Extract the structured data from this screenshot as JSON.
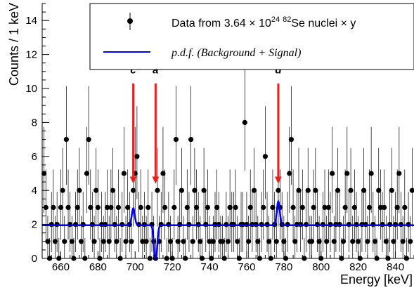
{
  "chart_data": {
    "type": "scatter",
    "xlabel": "Energy [keV]",
    "ylabel": "Counts / 1 keV",
    "xlim": [
      650,
      850
    ],
    "ylim": [
      0,
      15
    ],
    "x_ticks": [
      660,
      680,
      700,
      720,
      740,
      760,
      780,
      800,
      820,
      840
    ],
    "y_ticks": [
      0,
      2,
      4,
      6,
      8,
      10,
      12,
      14
    ],
    "grid": false,
    "legend_position": "top-right",
    "legend": {
      "data_text": "Data from 3.64 × 10",
      "data_exp": "24",
      "data_iso": "82",
      "data_tail": "Se nuclei × y",
      "pdf_text": "p.d.f. (Background + Signal)"
    },
    "series": [
      {
        "name": "Data from 3.64 × 10^24 82Se nuclei × y",
        "style": "points-with-errorbars",
        "color": "#000000",
        "x": [
          651,
          652,
          653,
          654,
          655,
          656,
          657,
          658,
          659,
          660,
          661,
          662,
          663,
          664,
          665,
          666,
          667,
          668,
          669,
          670,
          671,
          672,
          673,
          674,
          675,
          676,
          677,
          678,
          679,
          680,
          681,
          682,
          683,
          684,
          685,
          686,
          687,
          688,
          689,
          690,
          691,
          692,
          693,
          694,
          695,
          696,
          697,
          698,
          699,
          700,
          701,
          702,
          703,
          704,
          705,
          706,
          707,
          708,
          709,
          710,
          711,
          712,
          713,
          714,
          715,
          716,
          717,
          718,
          719,
          720,
          721,
          722,
          723,
          724,
          725,
          726,
          727,
          728,
          729,
          730,
          731,
          732,
          733,
          734,
          735,
          736,
          737,
          738,
          739,
          740,
          741,
          742,
          743,
          744,
          745,
          746,
          747,
          748,
          749,
          750,
          751,
          752,
          753,
          754,
          755,
          756,
          757,
          758,
          759,
          760,
          761,
          762,
          763,
          764,
          765,
          766,
          767,
          768,
          769,
          770,
          771,
          772,
          773,
          774,
          775,
          776,
          777,
          778,
          779,
          780,
          781,
          782,
          783,
          784,
          785,
          786,
          787,
          788,
          789,
          790,
          791,
          792,
          793,
          794,
          795,
          796,
          797,
          798,
          799,
          800,
          801,
          802,
          803,
          804,
          805,
          806,
          807,
          808,
          809,
          810,
          811,
          812,
          813,
          814,
          815,
          816,
          817,
          818,
          819,
          820,
          821,
          822,
          823,
          824,
          825,
          826,
          827,
          828,
          829,
          830,
          831,
          832,
          833,
          834,
          835,
          836,
          837,
          838,
          839,
          840,
          841,
          842,
          843,
          844,
          845,
          846,
          847,
          848,
          849
        ],
        "y": [
          5,
          3,
          1,
          0,
          2,
          3,
          1,
          2,
          0,
          3,
          4,
          1,
          7,
          3,
          2,
          1,
          0,
          2,
          3,
          4,
          1,
          2,
          0,
          5,
          7,
          3,
          2,
          1,
          4,
          3,
          0,
          2,
          1,
          2,
          3,
          1,
          3,
          4,
          2,
          1,
          3,
          0,
          2,
          5,
          1,
          3,
          2,
          1,
          4,
          5,
          6,
          2,
          3,
          1,
          2,
          1,
          3,
          0,
          2,
          1,
          0,
          4,
          1,
          2,
          5,
          3,
          0,
          2,
          1,
          0,
          3,
          7,
          1,
          2,
          4,
          1,
          0,
          3,
          2,
          7,
          1,
          4,
          3,
          2,
          1,
          0,
          4,
          2,
          3,
          1,
          0,
          1,
          2,
          3,
          2,
          1,
          1,
          0,
          2,
          1,
          3,
          2,
          2,
          3,
          1,
          0,
          2,
          2,
          8,
          2,
          1,
          3,
          2,
          4,
          2,
          1,
          0,
          2,
          3,
          6,
          2,
          1,
          0,
          3,
          2,
          1,
          4,
          3,
          2,
          1,
          0,
          2,
          5,
          7,
          3,
          1,
          2,
          4,
          2,
          3,
          0,
          2,
          4,
          1,
          1,
          3,
          4,
          2,
          1,
          0,
          2,
          3,
          1,
          3,
          2,
          5,
          1,
          2,
          4,
          2,
          0,
          1,
          3,
          5,
          2,
          4,
          1,
          3,
          2,
          1,
          0,
          2,
          4,
          2,
          1,
          3,
          5,
          2,
          1,
          0,
          4,
          3,
          2,
          3,
          1,
          0,
          2,
          4,
          1,
          2,
          3,
          5,
          2,
          1,
          3,
          0,
          2,
          1,
          4
        ]
      },
      {
        "name": "p.d.f. (Background + Signal)",
        "style": "line",
        "color": "#0000ee",
        "baseline": 1.95,
        "peaks": [
          {
            "center": 699,
            "amplitude": 1.0,
            "sigma": 0.8
          },
          {
            "center": 711,
            "amplitude": -2.3,
            "sigma": 0.8
          },
          {
            "center": 777,
            "amplitude": 1.4,
            "sigma": 0.8
          }
        ]
      }
    ],
    "annotations": [
      {
        "label": "c",
        "x": 699,
        "y_top": 10.3,
        "y_tip": 4.4
      },
      {
        "label": "a",
        "x": 711,
        "y_top": 10.3,
        "y_tip": 4.4
      },
      {
        "label": "d",
        "x": 777,
        "y_top": 10.3,
        "y_tip": 4.4
      }
    ],
    "colors": {
      "arrow": "#e8201a",
      "fit": "#0000ee",
      "data": "#000000"
    }
  }
}
